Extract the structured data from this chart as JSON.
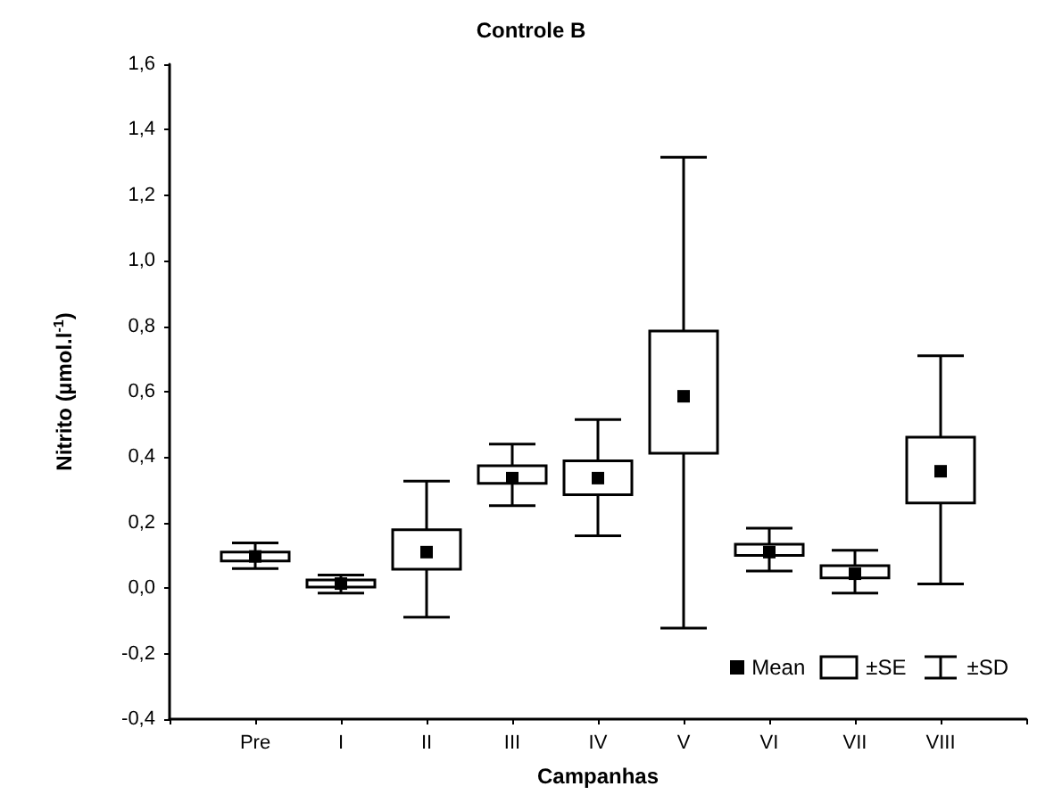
{
  "chart_data": {
    "type": "box",
    "title": "Controle B",
    "xlabel": "Campanhas",
    "ylabel": "Nitrito (µmol.l$^{-1}$)",
    "categories": [
      null,
      "Pre",
      "I",
      "II",
      "III",
      "IV",
      "V",
      "VI",
      "VII",
      "VIII",
      null
    ],
    "boxes": [
      null,
      {
        "low": 0.06,
        "q1": 0.083,
        "q3": 0.11,
        "high": 0.138,
        "mean": 0.097
      },
      {
        "low": -0.015,
        "q1": 0.003,
        "q3": 0.025,
        "high": 0.04,
        "mean": 0.014
      },
      {
        "low": -0.089,
        "q1": 0.058,
        "q3": 0.178,
        "high": 0.327,
        "mean": 0.11
      },
      {
        "low": 0.252,
        "q1": 0.32,
        "q3": 0.374,
        "high": 0.44,
        "mean": 0.336
      },
      {
        "low": 0.16,
        "q1": 0.285,
        "q3": 0.389,
        "high": 0.515,
        "mean": 0.336
      },
      {
        "low": -0.122,
        "q1": 0.412,
        "q3": 0.785,
        "high": 1.316,
        "mean": 0.586
      },
      {
        "low": 0.052,
        "q1": 0.1,
        "q3": 0.134,
        "high": 0.183,
        "mean": 0.11
      },
      {
        "low": -0.015,
        "q1": 0.031,
        "q3": 0.069,
        "high": 0.116,
        "mean": 0.044
      },
      {
        "low": 0.013,
        "q1": 0.26,
        "q3": 0.461,
        "high": 0.71,
        "mean": 0.357
      },
      null
    ],
    "color": "#000000",
    "marker": "square",
    "ylim": [
      -0.4,
      1.6
    ],
    "yticks": [
      {
        "value": -0.4,
        "label": "-0,4"
      },
      {
        "value": -0.2,
        "label": "-0,2"
      },
      {
        "value": 0,
        "label": "0,0"
      },
      {
        "value": 0.2,
        "label": "0,2"
      },
      {
        "value": 0.4,
        "label": "0,4"
      },
      {
        "value": 0.6,
        "label": "0,6"
      },
      {
        "value": 0.8,
        "label": "0,8"
      },
      {
        "value": 1.0,
        "label": "1,0"
      },
      {
        "value": 1.2,
        "label": "1,2"
      },
      {
        "value": 1.4,
        "label": "1,4"
      },
      {
        "value": 1.6,
        "label": "1,6"
      }
    ],
    "annotations": [
      "Mean",
      "±SE",
      "±SD"
    ],
    "grid": false
  }
}
